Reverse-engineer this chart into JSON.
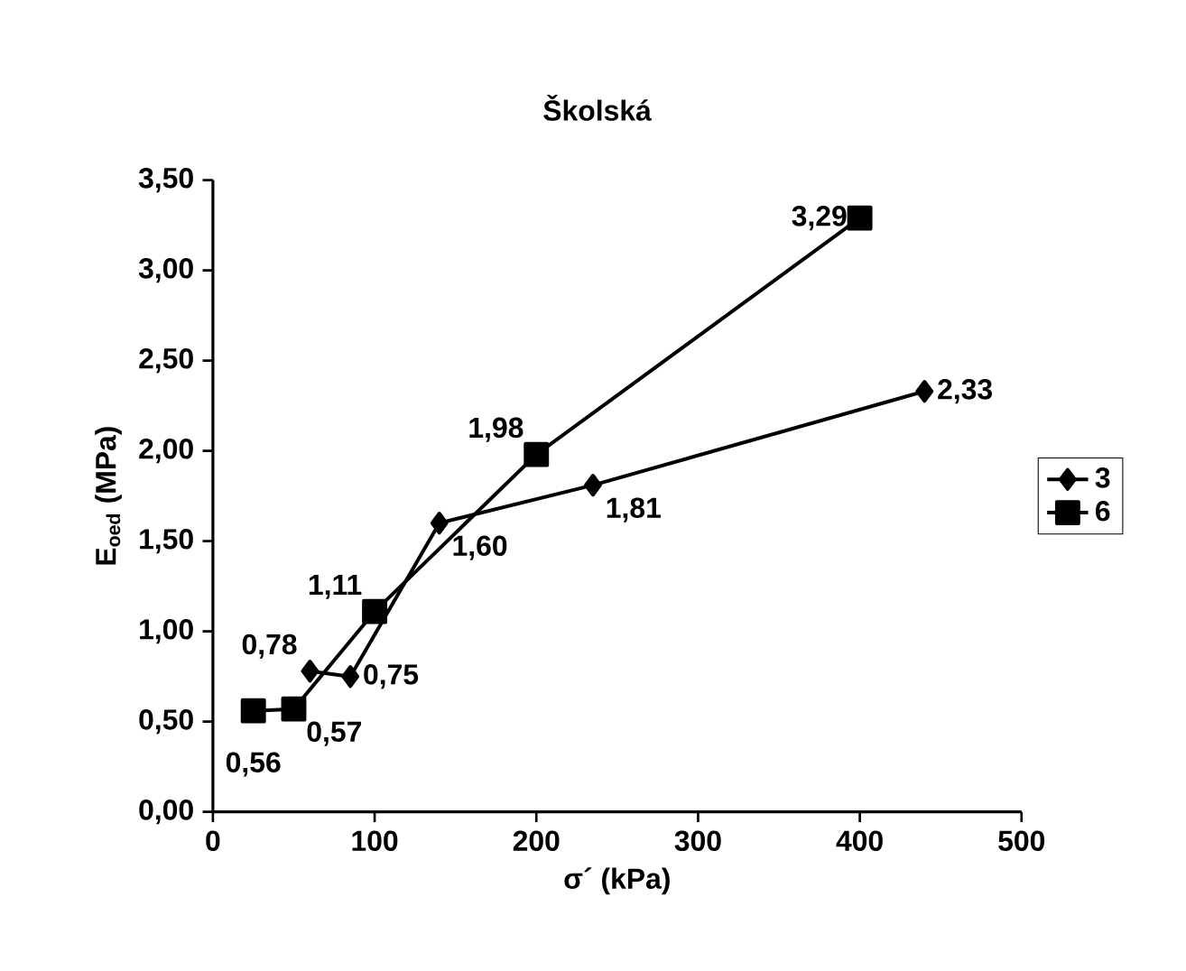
{
  "chart_data": {
    "type": "line",
    "title": "Školská",
    "xlabel": "σ´ (kPa)",
    "ylabel": "E$_{oed}$ (MPa)",
    "xlim": [
      0,
      500
    ],
    "xticks": [
      0,
      100,
      200,
      300,
      400,
      500
    ],
    "ylim": [
      0,
      3.5
    ],
    "yticks": [
      {
        "value": 0,
        "label": "0,00"
      },
      {
        "value": 0.5,
        "label": "0,50"
      },
      {
        "value": 1,
        "label": "1,00"
      },
      {
        "value": 1.5,
        "label": "1,50"
      },
      {
        "value": 2,
        "label": "2,00"
      },
      {
        "value": 2.5,
        "label": "2,50"
      },
      {
        "value": 3,
        "label": "3,00"
      },
      {
        "value": 3.5,
        "label": "3,50"
      }
    ],
    "grid": false,
    "legend": "right",
    "series": [
      {
        "name": "3",
        "color": "#000000",
        "marker": "diamond",
        "x": [
          60,
          85,
          140,
          235,
          440
        ],
        "values": [
          0.78,
          0.75,
          1.6,
          1.81,
          2.33
        ],
        "value_labels": [
          "0,78",
          "0,75",
          "1,60",
          "1,81",
          "2,33"
        ]
      },
      {
        "name": "6",
        "color": "#000000",
        "marker": "square",
        "x": [
          25,
          50,
          100,
          200,
          400
        ],
        "values": [
          0.56,
          0.57,
          1.11,
          1.98,
          3.29
        ],
        "value_labels": [
          "0,56",
          "0,57",
          "1,11",
          "1,98",
          "3,29"
        ]
      }
    ]
  }
}
